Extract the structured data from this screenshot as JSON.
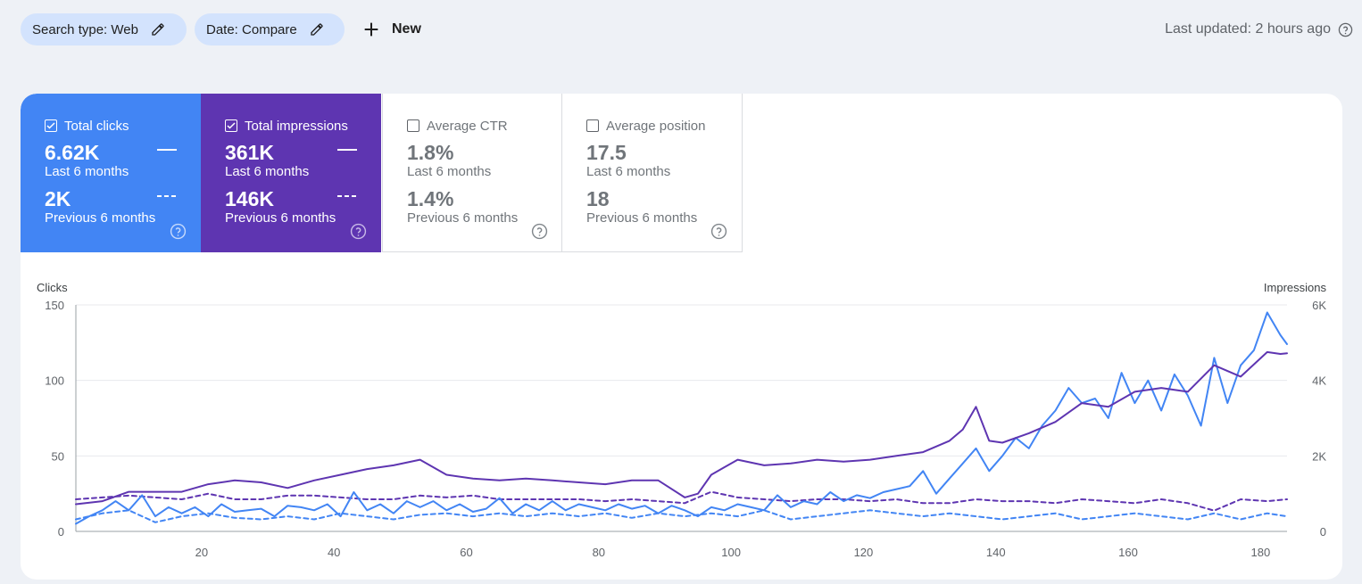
{
  "toolbar": {
    "search_type_label": "Search type: Web",
    "date_label": "Date: Compare",
    "new_label": "New",
    "last_updated": "Last updated: 2 hours ago"
  },
  "metrics": {
    "clicks": {
      "label": "Total clicks",
      "value": "6.62K",
      "period": "Last 6 months",
      "prev_value": "2K",
      "prev_period": "Previous 6 months",
      "checked": true,
      "color": "#4285f4"
    },
    "impressions": {
      "label": "Total impressions",
      "value": "361K",
      "period": "Last 6 months",
      "prev_value": "146K",
      "prev_period": "Previous 6 months",
      "checked": true,
      "color": "#5e35b1"
    },
    "ctr": {
      "label": "Average CTR",
      "value": "1.8%",
      "period": "Last 6 months",
      "prev_value": "1.4%",
      "prev_period": "Previous 6 months",
      "checked": false
    },
    "position": {
      "label": "Average position",
      "value": "17.5",
      "period": "Last 6 months",
      "prev_value": "18",
      "prev_period": "Previous 6 months",
      "checked": false
    }
  },
  "chart_data": {
    "type": "line",
    "ylabel_left": "Clicks",
    "ylabel_right": "Impressions",
    "y_left_ticks": [
      "0",
      "50",
      "100",
      "150"
    ],
    "y_right_ticks": [
      "0",
      "2K",
      "4K",
      "6K"
    ],
    "ylim_left": [
      0,
      150
    ],
    "ylim_right": [
      0,
      6000
    ],
    "xlim": [
      1,
      184
    ],
    "x_ticks": [
      20,
      40,
      60,
      80,
      100,
      120,
      140,
      160,
      180
    ],
    "grid": true,
    "series": [
      {
        "name": "Total clicks",
        "axis": "left",
        "style": "solid",
        "color": "#4285f4",
        "points": [
          [
            1,
            5
          ],
          [
            3,
            10
          ],
          [
            5,
            14
          ],
          [
            7,
            20
          ],
          [
            9,
            14
          ],
          [
            11,
            24
          ],
          [
            13,
            10
          ],
          [
            15,
            16
          ],
          [
            17,
            12
          ],
          [
            19,
            16
          ],
          [
            21,
            10
          ],
          [
            23,
            18
          ],
          [
            25,
            13
          ],
          [
            27,
            14
          ],
          [
            29,
            15
          ],
          [
            31,
            10
          ],
          [
            33,
            17
          ],
          [
            35,
            16
          ],
          [
            37,
            14
          ],
          [
            39,
            18
          ],
          [
            41,
            10
          ],
          [
            43,
            26
          ],
          [
            45,
            14
          ],
          [
            47,
            18
          ],
          [
            49,
            12
          ],
          [
            51,
            20
          ],
          [
            53,
            16
          ],
          [
            55,
            20
          ],
          [
            57,
            14
          ],
          [
            59,
            18
          ],
          [
            61,
            13
          ],
          [
            63,
            15
          ],
          [
            65,
            22
          ],
          [
            67,
            12
          ],
          [
            69,
            18
          ],
          [
            71,
            14
          ],
          [
            73,
            20
          ],
          [
            75,
            14
          ],
          [
            77,
            18
          ],
          [
            79,
            16
          ],
          [
            81,
            14
          ],
          [
            83,
            18
          ],
          [
            85,
            15
          ],
          [
            87,
            17
          ],
          [
            89,
            12
          ],
          [
            91,
            17
          ],
          [
            93,
            14
          ],
          [
            95,
            10
          ],
          [
            97,
            16
          ],
          [
            99,
            14
          ],
          [
            101,
            18
          ],
          [
            103,
            16
          ],
          [
            105,
            14
          ],
          [
            107,
            24
          ],
          [
            109,
            16
          ],
          [
            111,
            20
          ],
          [
            113,
            18
          ],
          [
            115,
            26
          ],
          [
            117,
            20
          ],
          [
            119,
            24
          ],
          [
            121,
            22
          ],
          [
            123,
            26
          ],
          [
            125,
            28
          ],
          [
            127,
            30
          ],
          [
            129,
            40
          ],
          [
            131,
            25
          ],
          [
            133,
            35
          ],
          [
            135,
            45
          ],
          [
            137,
            55
          ],
          [
            139,
            40
          ],
          [
            141,
            50
          ],
          [
            143,
            62
          ],
          [
            145,
            55
          ],
          [
            147,
            70
          ],
          [
            149,
            80
          ],
          [
            151,
            95
          ],
          [
            153,
            85
          ],
          [
            155,
            88
          ],
          [
            157,
            75
          ],
          [
            159,
            105
          ],
          [
            161,
            85
          ],
          [
            163,
            100
          ],
          [
            165,
            80
          ],
          [
            167,
            104
          ],
          [
            169,
            90
          ],
          [
            171,
            70
          ],
          [
            173,
            115
          ],
          [
            175,
            85
          ],
          [
            177,
            110
          ],
          [
            179,
            120
          ],
          [
            181,
            145
          ],
          [
            183,
            130
          ],
          [
            184,
            124
          ]
        ]
      },
      {
        "name": "Total impressions",
        "axis": "right",
        "style": "solid",
        "color": "#5e35b1",
        "points": [
          [
            1,
            720
          ],
          [
            5,
            800
          ],
          [
            9,
            1050
          ],
          [
            13,
            1050
          ],
          [
            17,
            1050
          ],
          [
            21,
            1250
          ],
          [
            25,
            1350
          ],
          [
            29,
            1300
          ],
          [
            33,
            1150
          ],
          [
            37,
            1350
          ],
          [
            41,
            1500
          ],
          [
            45,
            1650
          ],
          [
            49,
            1750
          ],
          [
            53,
            1900
          ],
          [
            57,
            1500
          ],
          [
            61,
            1400
          ],
          [
            65,
            1350
          ],
          [
            69,
            1400
          ],
          [
            73,
            1350
          ],
          [
            77,
            1300
          ],
          [
            81,
            1250
          ],
          [
            85,
            1350
          ],
          [
            89,
            1350
          ],
          [
            93,
            900
          ],
          [
            95,
            1000
          ],
          [
            97,
            1500
          ],
          [
            99,
            1700
          ],
          [
            101,
            1900
          ],
          [
            105,
            1750
          ],
          [
            109,
            1800
          ],
          [
            113,
            1900
          ],
          [
            117,
            1850
          ],
          [
            121,
            1900
          ],
          [
            125,
            2000
          ],
          [
            129,
            2100
          ],
          [
            133,
            2400
          ],
          [
            135,
            2700
          ],
          [
            137,
            3300
          ],
          [
            139,
            2400
          ],
          [
            141,
            2350
          ],
          [
            145,
            2600
          ],
          [
            149,
            2900
          ],
          [
            153,
            3400
          ],
          [
            157,
            3300
          ],
          [
            161,
            3700
          ],
          [
            165,
            3800
          ],
          [
            169,
            3700
          ],
          [
            173,
            4400
          ],
          [
            177,
            4100
          ],
          [
            181,
            4750
          ],
          [
            183,
            4700
          ],
          [
            184,
            4720
          ]
        ]
      },
      {
        "name": "Previous clicks",
        "axis": "left",
        "style": "dashed",
        "color": "#4285f4",
        "points": [
          [
            1,
            8
          ],
          [
            5,
            12
          ],
          [
            9,
            14
          ],
          [
            13,
            6
          ],
          [
            17,
            10
          ],
          [
            21,
            12
          ],
          [
            25,
            9
          ],
          [
            29,
            8
          ],
          [
            33,
            10
          ],
          [
            37,
            8
          ],
          [
            41,
            12
          ],
          [
            45,
            10
          ],
          [
            49,
            8
          ],
          [
            53,
            11
          ],
          [
            57,
            12
          ],
          [
            61,
            10
          ],
          [
            65,
            12
          ],
          [
            69,
            10
          ],
          [
            73,
            12
          ],
          [
            77,
            10
          ],
          [
            81,
            12
          ],
          [
            85,
            9
          ],
          [
            89,
            12
          ],
          [
            93,
            10
          ],
          [
            97,
            12
          ],
          [
            101,
            10
          ],
          [
            105,
            14
          ],
          [
            109,
            8
          ],
          [
            113,
            10
          ],
          [
            117,
            12
          ],
          [
            121,
            14
          ],
          [
            125,
            12
          ],
          [
            129,
            10
          ],
          [
            133,
            12
          ],
          [
            137,
            10
          ],
          [
            141,
            8
          ],
          [
            145,
            10
          ],
          [
            149,
            12
          ],
          [
            153,
            8
          ],
          [
            157,
            10
          ],
          [
            161,
            12
          ],
          [
            165,
            10
          ],
          [
            169,
            8
          ],
          [
            173,
            12
          ],
          [
            177,
            8
          ],
          [
            181,
            12
          ],
          [
            184,
            10
          ]
        ]
      },
      {
        "name": "Previous impressions",
        "axis": "right",
        "style": "dashed",
        "color": "#5e35b1",
        "points": [
          [
            1,
            850
          ],
          [
            5,
            900
          ],
          [
            9,
            950
          ],
          [
            13,
            900
          ],
          [
            17,
            850
          ],
          [
            21,
            1000
          ],
          [
            25,
            850
          ],
          [
            29,
            850
          ],
          [
            33,
            950
          ],
          [
            37,
            950
          ],
          [
            41,
            900
          ],
          [
            45,
            850
          ],
          [
            49,
            850
          ],
          [
            53,
            950
          ],
          [
            57,
            900
          ],
          [
            61,
            950
          ],
          [
            65,
            850
          ],
          [
            69,
            850
          ],
          [
            73,
            850
          ],
          [
            77,
            850
          ],
          [
            81,
            800
          ],
          [
            85,
            850
          ],
          [
            89,
            800
          ],
          [
            93,
            750
          ],
          [
            97,
            1050
          ],
          [
            101,
            900
          ],
          [
            105,
            850
          ],
          [
            109,
            800
          ],
          [
            113,
            850
          ],
          [
            117,
            850
          ],
          [
            121,
            800
          ],
          [
            125,
            850
          ],
          [
            129,
            750
          ],
          [
            133,
            750
          ],
          [
            137,
            850
          ],
          [
            141,
            800
          ],
          [
            145,
            800
          ],
          [
            149,
            750
          ],
          [
            153,
            850
          ],
          [
            157,
            800
          ],
          [
            161,
            750
          ],
          [
            165,
            850
          ],
          [
            169,
            750
          ],
          [
            173,
            550
          ],
          [
            177,
            850
          ],
          [
            181,
            800
          ],
          [
            184,
            850
          ]
        ]
      }
    ]
  }
}
